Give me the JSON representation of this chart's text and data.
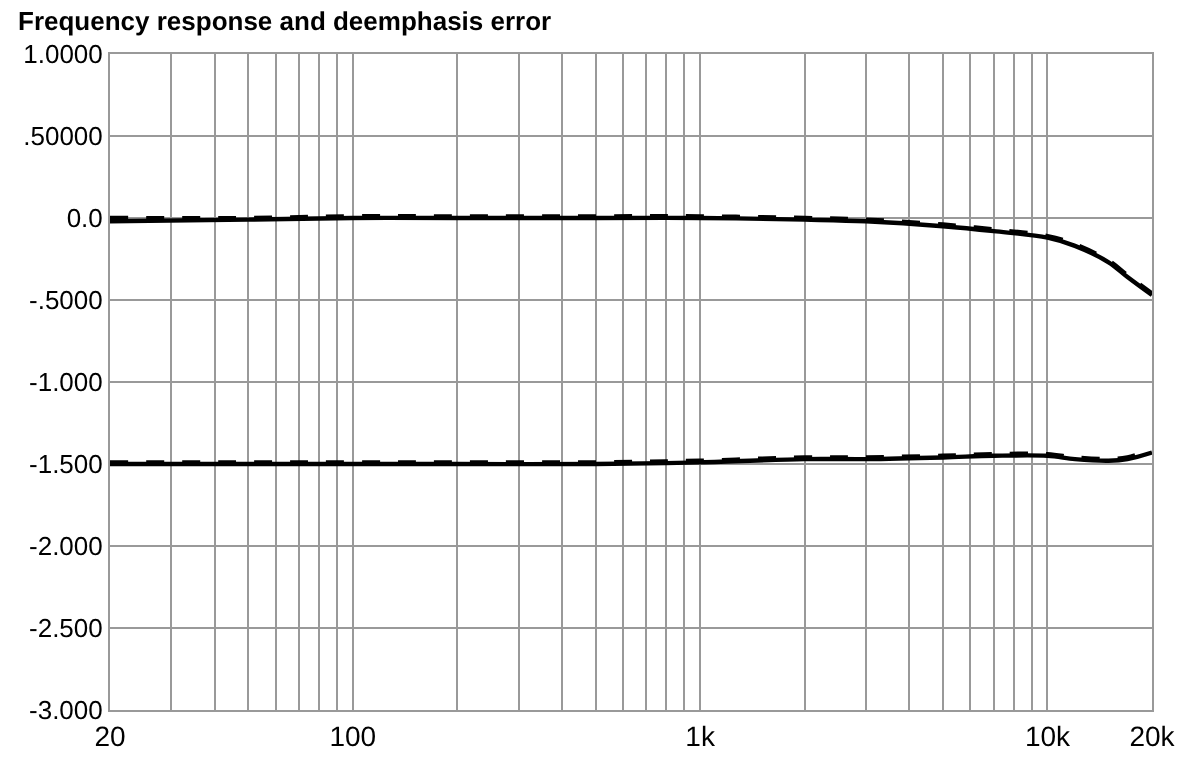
{
  "chart_data": {
    "type": "line",
    "title": "Frequency response and deemphasis error",
    "log": "x",
    "grid": true,
    "marker": "none",
    "xlim": [
      20,
      20000
    ],
    "xticks": [
      20,
      {
        "value": 30,
        "label": null
      },
      {
        "value": 40,
        "label": null
      },
      {
        "value": 50,
        "label": null
      },
      {
        "value": 60,
        "label": null
      },
      {
        "value": 70,
        "label": null
      },
      {
        "value": 80,
        "label": null
      },
      {
        "value": 90,
        "label": null
      },
      100,
      {
        "value": 200,
        "label": null
      },
      {
        "value": 300,
        "label": null
      },
      {
        "value": 400,
        "label": null
      },
      {
        "value": 500,
        "label": null
      },
      {
        "value": 600,
        "label": null
      },
      {
        "value": 700,
        "label": null
      },
      {
        "value": 800,
        "label": null
      },
      {
        "value": 900,
        "label": null
      },
      {
        "value": 1000,
        "label": "1k"
      },
      {
        "value": 2000,
        "label": null
      },
      {
        "value": 3000,
        "label": null
      },
      {
        "value": 4000,
        "label": null
      },
      {
        "value": 5000,
        "label": null
      },
      {
        "value": 6000,
        "label": null
      },
      {
        "value": 7000,
        "label": null
      },
      {
        "value": 8000,
        "label": null
      },
      {
        "value": 9000,
        "label": null
      },
      {
        "value": 10000,
        "label": "10k"
      },
      {
        "value": 20000,
        "label": "20k"
      }
    ],
    "ylim": [
      -3,
      1
    ],
    "yticks": [
      {
        "value": 1,
        "label": "1.0000"
      },
      {
        "value": 0.5,
        "label": ".50000"
      },
      {
        "value": 0,
        "label": "0.0"
      },
      {
        "value": -0.5,
        "label": "-.5000"
      },
      {
        "value": -1,
        "label": "-1.000"
      },
      {
        "value": -1.5,
        "label": "-1.500"
      },
      {
        "value": -2,
        "label": "-2.000"
      },
      {
        "value": -2.5,
        "label": "-2.500"
      },
      {
        "value": -3,
        "label": "-3.000"
      }
    ],
    "x": [
      20,
      50,
      100,
      200,
      500,
      1000,
      2000,
      3000,
      5000,
      7000,
      10000,
      12000,
      15000,
      17000,
      20000
    ],
    "series": [
      {
        "color": "#000000",
        "line_style": "solid",
        "values": [
          -0.02,
          -0.01,
          0,
          0,
          0,
          0,
          -0.01,
          -0.02,
          -0.05,
          -0.08,
          -0.12,
          -0.17,
          -0.27,
          -0.36,
          -0.47
        ]
      },
      {
        "color": "#000000",
        "line_style": "dashed",
        "values": [
          0,
          0,
          0.01,
          0.01,
          0.01,
          0.01,
          0,
          -0.01,
          -0.04,
          -0.07,
          -0.11,
          -0.16,
          -0.26,
          -0.35,
          -0.46
        ]
      },
      {
        "color": "#000000",
        "line_style": "solid",
        "values": [
          -1.5,
          -1.5,
          -1.5,
          -1.5,
          -1.5,
          -1.49,
          -1.47,
          -1.47,
          -1.46,
          -1.45,
          -1.45,
          -1.47,
          -1.48,
          -1.47,
          -1.43
        ]
      },
      {
        "color": "#000000",
        "line_style": "dashed",
        "values": [
          -1.49,
          -1.49,
          -1.49,
          -1.49,
          -1.49,
          -1.48,
          -1.46,
          -1.46,
          -1.45,
          -1.44,
          -1.44,
          -1.46,
          -1.47,
          -1.46,
          -1.41
        ]
      }
    ]
  }
}
